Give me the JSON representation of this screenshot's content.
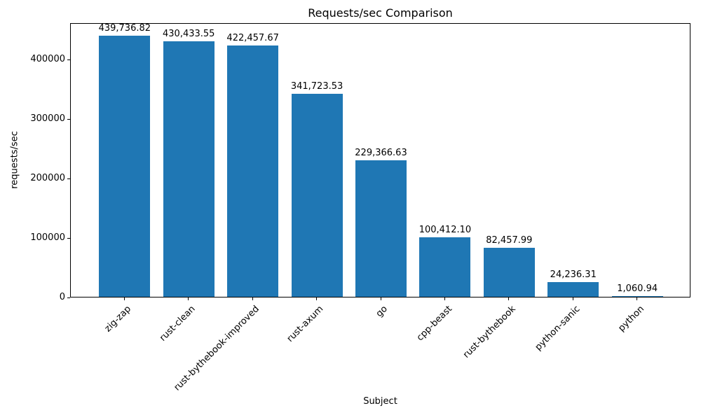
{
  "figure": {
    "title": "Requests/sec Comparison",
    "xlabel": "Subject",
    "ylabel": "requests/sec"
  },
  "chart_data": {
    "type": "bar",
    "title": "Requests/sec Comparison",
    "xlabel": "Subject",
    "ylabel": "requests/sec",
    "categories": [
      "zig-zap",
      "rust-clean",
      "rust-bythebook-improved",
      "rust-axum",
      "go",
      "cpp-beast",
      "rust-bythebook",
      "python-sanic",
      "python"
    ],
    "values": [
      439736.82,
      430433.55,
      422457.67,
      341723.53,
      229366.63,
      100412.1,
      82457.99,
      24236.31,
      1060.94
    ],
    "value_labels": [
      "439,736.82",
      "430,433.55",
      "422,457.67",
      "341,723.53",
      "229,366.63",
      "100,412.10",
      "82,457.99",
      "24,236.31",
      "1,060.94"
    ],
    "yticks": [
      0,
      100000,
      200000,
      300000,
      400000
    ],
    "ytick_labels": [
      "0",
      "100000",
      "200000",
      "300000",
      "400000"
    ],
    "ylim": [
      0,
      461724
    ],
    "bar_color": "#1f77b4",
    "grid": false,
    "legend": "none"
  }
}
